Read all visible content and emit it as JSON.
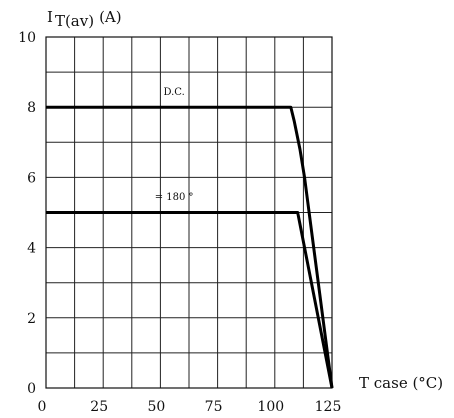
{
  "chart_data": {
    "type": "line",
    "title": "",
    "ylabel_main": "I",
    "ylabel_sub": "T(av)",
    "ylabel_unit": "(A)",
    "xlabel": "T case (°C)",
    "xlim": [
      0,
      125
    ],
    "ylim": [
      0,
      10
    ],
    "x_ticks": [
      0,
      25,
      50,
      75,
      100,
      125
    ],
    "y_ticks": [
      0,
      2,
      4,
      6,
      8,
      10
    ],
    "x_grid_step": 12.5,
    "y_grid_step": 1,
    "grid": true,
    "series": [
      {
        "name": "D.C.",
        "x": [
          0,
          107,
          108.5,
          111,
          113,
          125
        ],
        "y": [
          8,
          8,
          7.6,
          6.8,
          6.0,
          0
        ]
      },
      {
        "name": "= 180 °",
        "x": [
          0,
          110,
          113,
          125
        ],
        "y": [
          5,
          5,
          4,
          0
        ]
      }
    ],
    "annotations": [
      {
        "text": "D.C.",
        "x": 56,
        "y": 8.35
      },
      {
        "text": "= 180 °",
        "x": 56,
        "y": 5.35
      }
    ]
  }
}
